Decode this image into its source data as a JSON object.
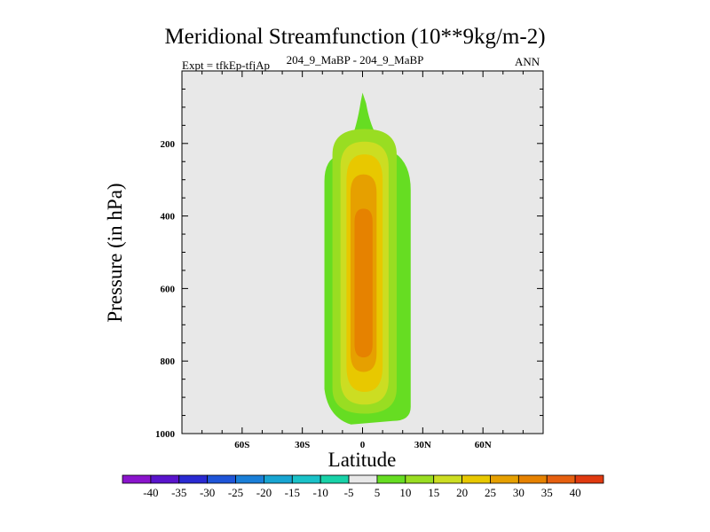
{
  "chart_data": {
    "type": "heatmap",
    "title": "Meridional Streamfunction (10**9kg/m-2)",
    "subtitle_left": "Expt = tfkEp-tfjAp",
    "subtitle_center": "204_9_MaBP - 204_9_MaBP",
    "subtitle_right": "ANN",
    "xlabel": "Latitude",
    "ylabel": "Pressure (in hPa)",
    "xlim": [
      -90,
      90
    ],
    "ylim": [
      1000,
      0
    ],
    "x_ticks": [
      "60S",
      "30S",
      "0",
      "30N",
      "60N"
    ],
    "x_tick_values": [
      -60,
      -30,
      0,
      30,
      60
    ],
    "y_ticks": [
      "200",
      "400",
      "600",
      "800",
      "1000"
    ],
    "y_tick_values": [
      200,
      400,
      600,
      800,
      1000
    ],
    "background_color": "#e8e8e8",
    "contour_levels": [
      {
        "level": 5,
        "color": "#66dd22",
        "lat_min": -19,
        "lat_max": 24,
        "p_top": 60,
        "p_bottom": 975
      },
      {
        "level": 10,
        "color": "#99dd22",
        "lat_min": -15,
        "lat_max": 17,
        "p_top": 160,
        "p_bottom": 945
      },
      {
        "level": 15,
        "color": "#ccdd22",
        "lat_min": -11,
        "lat_max": 13,
        "p_top": 195,
        "p_bottom": 920
      },
      {
        "level": 20,
        "color": "#e8c800",
        "lat_min": -8,
        "lat_max": 10,
        "p_top": 230,
        "p_bottom": 885
      },
      {
        "level": 25,
        "color": "#e6a000",
        "lat_min": -6,
        "lat_max": 7,
        "p_top": 285,
        "p_bottom": 830
      },
      {
        "level": 30,
        "color": "#e68200",
        "lat_min": -4,
        "lat_max": 5,
        "p_top": 380,
        "p_bottom": 790
      }
    ],
    "colorbar": {
      "labels": [
        "-40",
        "-35",
        "-30",
        "-25",
        "-20",
        "-15",
        "-10",
        "-5",
        "5",
        "10",
        "15",
        "20",
        "25",
        "30",
        "35",
        "40"
      ],
      "colors": [
        "#8a14cc",
        "#5a14cc",
        "#2a2ad2",
        "#1f55d8",
        "#1a7fd8",
        "#18a5d2",
        "#1ac2c8",
        "#18d2a8",
        "#e8e8e8",
        "#66dd22",
        "#99dd22",
        "#ccdd22",
        "#e8c800",
        "#e6a000",
        "#e68200",
        "#e66010",
        "#e03a10"
      ]
    }
  }
}
